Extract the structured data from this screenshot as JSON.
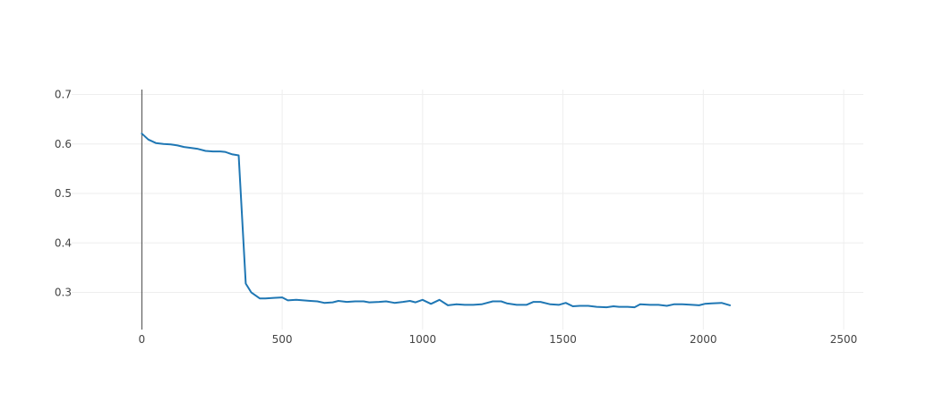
{
  "chart_data": {
    "type": "line",
    "title": "",
    "xlabel": "",
    "ylabel": "",
    "xlim": [
      -250,
      2570
    ],
    "ylim": [
      0.225,
      0.71
    ],
    "x_ticks": [
      0,
      500,
      1000,
      1500,
      2000,
      2500
    ],
    "y_ticks": [
      0.3,
      0.4,
      0.5,
      0.6,
      0.7
    ],
    "x_tick_labels": [
      "0",
      "500",
      "1000",
      "1500",
      "2000",
      "2500"
    ],
    "y_tick_labels": [
      "0.3",
      "0.4",
      "0.5",
      "0.6",
      "0.7"
    ],
    "grid": true,
    "legend": "none",
    "series": [
      {
        "color": "#1f77b4",
        "x": [
          0,
          23,
          50,
          77,
          103,
          127,
          150,
          177,
          200,
          227,
          253,
          280,
          296,
          323,
          345,
          370,
          390,
          420,
          440,
          470,
          500,
          520,
          550,
          575,
          600,
          625,
          650,
          680,
          700,
          730,
          760,
          790,
          810,
          845,
          870,
          900,
          930,
          955,
          975,
          1000,
          1030,
          1060,
          1090,
          1120,
          1150,
          1180,
          1210,
          1250,
          1280,
          1300,
          1335,
          1370,
          1395,
          1420,
          1455,
          1485,
          1510,
          1535,
          1560,
          1590,
          1620,
          1655,
          1680,
          1700,
          1730,
          1755,
          1775,
          1810,
          1840,
          1870,
          1895,
          1925,
          1960,
          1985,
          2005,
          2030,
          2065,
          2095
        ],
        "y": [
          0.621,
          0.609,
          0.602,
          0.6,
          0.599,
          0.597,
          0.594,
          0.592,
          0.59,
          0.586,
          0.585,
          0.585,
          0.584,
          0.579,
          0.577,
          0.318,
          0.3,
          0.288,
          0.288,
          0.289,
          0.29,
          0.284,
          0.285,
          0.284,
          0.283,
          0.282,
          0.279,
          0.28,
          0.283,
          0.281,
          0.282,
          0.282,
          0.28,
          0.281,
          0.282,
          0.279,
          0.281,
          0.283,
          0.28,
          0.285,
          0.277,
          0.285,
          0.274,
          0.276,
          0.275,
          0.275,
          0.276,
          0.282,
          0.282,
          0.278,
          0.275,
          0.275,
          0.281,
          0.281,
          0.276,
          0.275,
          0.279,
          0.272,
          0.273,
          0.273,
          0.271,
          0.27,
          0.272,
          0.271,
          0.271,
          0.27,
          0.276,
          0.275,
          0.275,
          0.273,
          0.276,
          0.276,
          0.275,
          0.274,
          0.277,
          0.278,
          0.279,
          0.274
        ]
      }
    ]
  }
}
